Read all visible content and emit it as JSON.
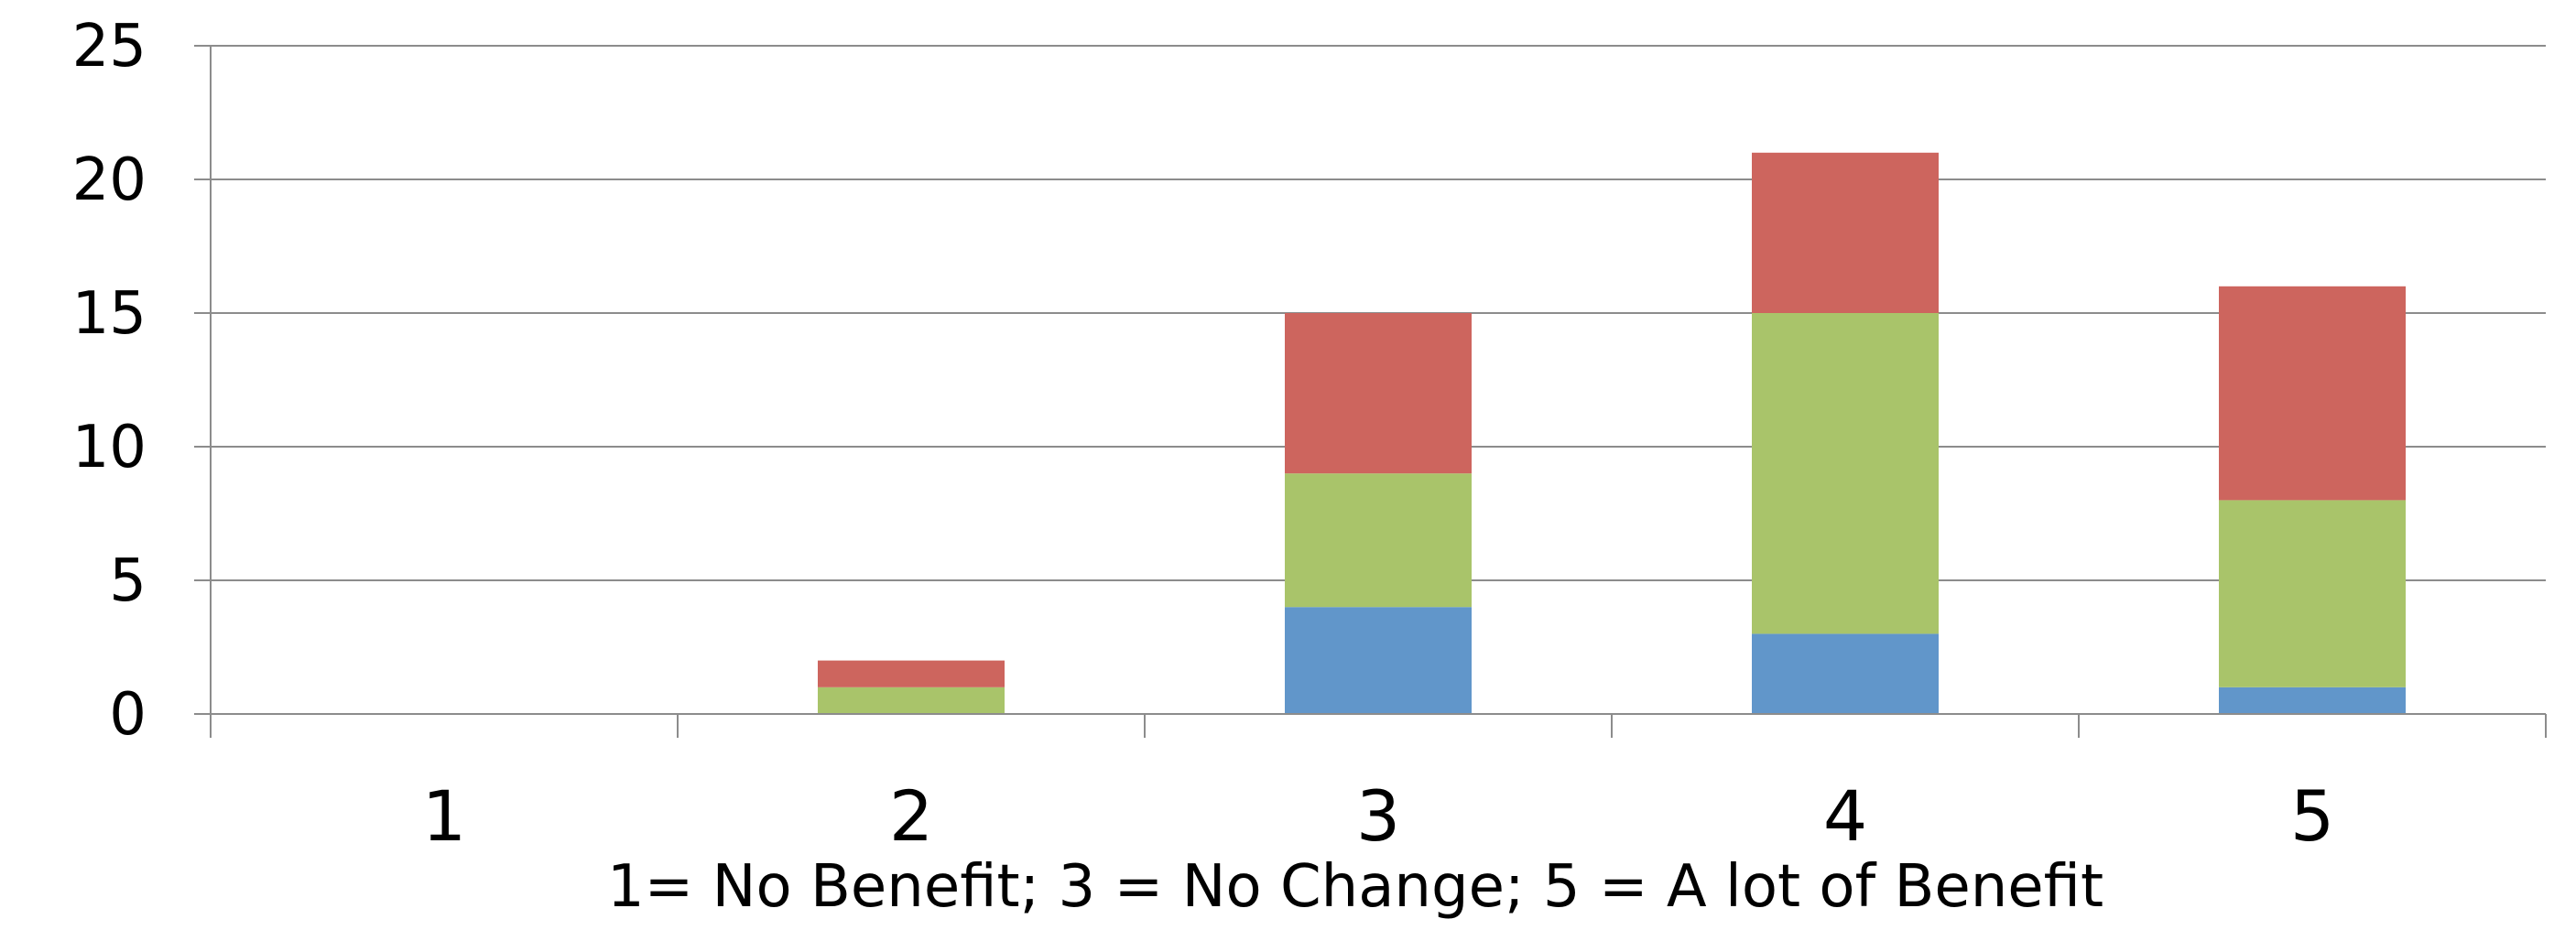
{
  "chart_data": {
    "type": "bar",
    "stacked": true,
    "categories": [
      "1",
      "2",
      "3",
      "4",
      "5"
    ],
    "series": [
      {
        "color": "#6196CA",
        "values": [
          0,
          0,
          4,
          3,
          1
        ]
      },
      {
        "color": "#A9C46A",
        "values": [
          0,
          1,
          5,
          12,
          7
        ]
      },
      {
        "color": "#CD655E",
        "values": [
          0,
          1,
          6,
          6,
          8
        ]
      }
    ],
    "yticks": [
      "0",
      "5",
      "10",
      "15",
      "20",
      "25"
    ],
    "ylim": [
      0,
      25
    ],
    "xlabel": "1= No Benefit; 3 = No Change; 5 = A lot of Benefit",
    "ylabel": "",
    "title": "",
    "grid": true,
    "legend": "none"
  }
}
